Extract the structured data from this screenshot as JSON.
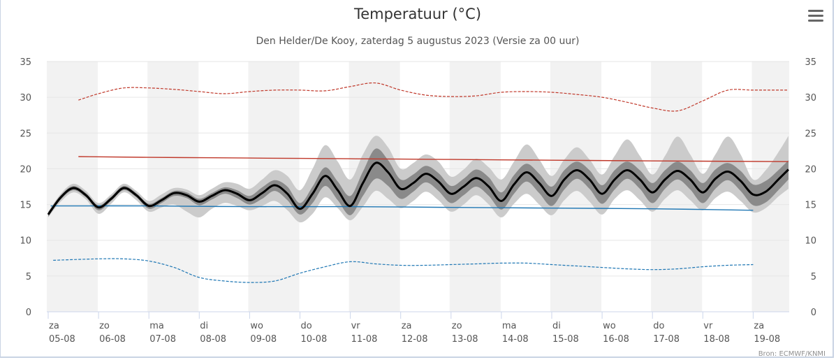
{
  "chart_data": {
    "type": "line",
    "title": "Temperatuur (°C)",
    "subtitle": "Den Helder/De Kooy, zaterdag 5 augustus 2023 (Versie za 00 uur)",
    "credit": "Bron: ECMWF/KNMI",
    "ylim": [
      0,
      35
    ],
    "yticks": [
      "0",
      "5",
      "10",
      "15",
      "20",
      "25",
      "30",
      "35"
    ],
    "xlim_days": [
      -0.03,
      14.7
    ],
    "xticks": [
      {
        "day": "za",
        "date": "05-08"
      },
      {
        "day": "zo",
        "date": "06-08"
      },
      {
        "day": "ma",
        "date": "07-08"
      },
      {
        "day": "di",
        "date": "08-08"
      },
      {
        "day": "wo",
        "date": "09-08"
      },
      {
        "day": "do",
        "date": "10-08"
      },
      {
        "day": "vr",
        "date": "11-08"
      },
      {
        "day": "za",
        "date": "12-08"
      },
      {
        "day": "zo",
        "date": "13-08"
      },
      {
        "day": "ma",
        "date": "14-08"
      },
      {
        "day": "di",
        "date": "15-08"
      },
      {
        "day": "wo",
        "date": "16-08"
      },
      {
        "day": "do",
        "date": "17-08"
      },
      {
        "day": "vr",
        "date": "18-08"
      },
      {
        "day": "za",
        "date": "19-08"
      }
    ],
    "grid": true,
    "colors": {
      "band_outer": "#cbcbcb",
      "band_inner": "#8a8a8a",
      "median": "#000000",
      "max_climate": "#c0392b",
      "min_climate": "#1f77b4",
      "record_max": "#c0392b",
      "record_min": "#1f77b4",
      "alt_shade": "#f2f2f2",
      "gridline": "#e6e6e6"
    },
    "series": [
      {
        "name": "mediaan",
        "x": [
          0,
          0.25,
          0.5,
          0.75,
          1.0,
          1.25,
          1.5,
          1.75,
          2.0,
          2.25,
          2.5,
          2.75,
          3.0,
          3.25,
          3.5,
          3.75,
          4.0,
          4.25,
          4.5,
          4.75,
          5.0,
          5.25,
          5.5,
          5.75,
          6.0,
          6.25,
          6.5,
          6.75,
          7.0,
          7.25,
          7.5,
          7.75,
          8.0,
          8.25,
          8.5,
          8.75,
          9.0,
          9.25,
          9.5,
          9.75,
          10.0,
          10.25,
          10.5,
          10.75,
          11.0,
          11.25,
          11.5,
          11.75,
          12.0,
          12.25,
          12.5,
          12.75,
          13.0,
          13.25,
          13.5,
          13.75,
          14.0,
          14.25,
          14.5,
          14.7
        ],
        "values": [
          13.6,
          16.0,
          17.3,
          16.3,
          14.6,
          15.8,
          17.3,
          16.3,
          14.8,
          15.6,
          16.6,
          16.3,
          15.4,
          16.2,
          17.0,
          16.5,
          15.6,
          16.6,
          17.7,
          16.5,
          14.4,
          16.5,
          19.0,
          17.0,
          14.8,
          18.0,
          20.8,
          19.5,
          17.2,
          18.0,
          19.3,
          18.2,
          16.5,
          17.5,
          18.7,
          17.5,
          15.5,
          17.8,
          19.5,
          18.0,
          16.2,
          18.5,
          19.8,
          18.5,
          16.5,
          18.5,
          19.8,
          18.5,
          16.7,
          18.5,
          19.7,
          18.5,
          16.7,
          18.6,
          19.6,
          18.3,
          16.4,
          16.8,
          18.5,
          19.9
        ]
      },
      {
        "name": "band_inner_upper",
        "values": [
          13.9,
          16.3,
          17.6,
          16.6,
          14.9,
          16.1,
          17.6,
          16.6,
          15.1,
          15.9,
          16.9,
          16.7,
          15.8,
          16.6,
          17.4,
          17.0,
          16.2,
          17.4,
          18.4,
          17.5,
          15.2,
          17.5,
          20.2,
          18.2,
          16.2,
          19.6,
          22.8,
          21.2,
          18.5,
          19.2,
          20.4,
          19.4,
          17.6,
          18.6,
          19.9,
          18.8,
          16.7,
          19.1,
          20.7,
          19.3,
          17.5,
          19.8,
          21.0,
          19.8,
          17.7,
          19.8,
          21.0,
          19.8,
          18.0,
          19.8,
          21.0,
          19.8,
          18.0,
          19.9,
          20.8,
          19.7,
          17.8,
          18.3,
          19.8,
          21.2
        ]
      },
      {
        "name": "band_inner_lower",
        "values": [
          13.3,
          15.7,
          17.0,
          16.0,
          14.2,
          15.5,
          17.0,
          16.0,
          14.4,
          15.2,
          16.2,
          15.9,
          14.9,
          15.7,
          16.5,
          15.9,
          15.0,
          15.8,
          16.9,
          15.6,
          13.6,
          15.2,
          17.6,
          15.6,
          13.5,
          16.2,
          18.6,
          17.6,
          15.8,
          16.8,
          18.1,
          16.9,
          15.2,
          16.3,
          17.5,
          16.2,
          14.3,
          16.5,
          18.2,
          16.6,
          14.8,
          17.1,
          18.6,
          17.2,
          15.1,
          17.1,
          18.6,
          17.2,
          15.2,
          17.2,
          18.5,
          17.1,
          15.2,
          17.2,
          18.4,
          16.9,
          14.9,
          15.3,
          17.0,
          18.5
        ]
      },
      {
        "name": "band_outer_upper",
        "values": [
          14.0,
          16.5,
          17.9,
          16.9,
          15.2,
          16.4,
          17.9,
          16.9,
          15.5,
          16.4,
          17.3,
          17.1,
          16.3,
          17.2,
          18.1,
          17.9,
          17.2,
          18.5,
          19.8,
          19.0,
          17.0,
          20.0,
          23.3,
          21.0,
          18.5,
          22.0,
          24.6,
          23.0,
          20.0,
          20.8,
          22.0,
          21.0,
          18.9,
          19.9,
          21.4,
          20.2,
          18.5,
          21.0,
          23.4,
          21.3,
          19.0,
          21.3,
          23.0,
          21.3,
          19.2,
          21.8,
          24.1,
          21.8,
          19.2,
          21.8,
          24.5,
          22.0,
          19.3,
          22.0,
          24.5,
          22.0,
          18.5,
          19.8,
          22.3,
          24.6
        ]
      },
      {
        "name": "band_outer_lower",
        "values": [
          13.2,
          15.4,
          16.7,
          15.7,
          13.7,
          15.1,
          16.7,
          15.6,
          14.0,
          14.6,
          15.0,
          14.0,
          13.2,
          14.4,
          15.2,
          14.8,
          14.2,
          14.8,
          15.5,
          14.2,
          12.5,
          13.7,
          16.0,
          14.5,
          12.8,
          14.7,
          16.9,
          15.8,
          14.5,
          15.5,
          16.8,
          15.6,
          14.0,
          15.0,
          16.3,
          15.0,
          13.2,
          15.1,
          16.5,
          15.0,
          13.5,
          15.6,
          16.9,
          15.4,
          13.6,
          15.8,
          17.0,
          15.6,
          14.0,
          15.8,
          17.0,
          15.6,
          14.2,
          15.9,
          16.8,
          15.5,
          13.9,
          14.5,
          16.1,
          17.2
        ]
      },
      {
        "name": "normaal_max",
        "x": [
          0.6,
          2,
          4,
          6,
          8,
          10,
          12,
          14.7
        ],
        "values": [
          21.7,
          21.6,
          21.5,
          21.4,
          21.3,
          21.2,
          21.1,
          21.0
        ]
      },
      {
        "name": "normaal_min",
        "x": [
          0.05,
          2,
          4,
          6,
          8,
          10,
          12,
          14.0
        ],
        "values": [
          14.8,
          14.8,
          14.7,
          14.7,
          14.6,
          14.5,
          14.4,
          14.2
        ]
      },
      {
        "name": "record_max",
        "x": [
          0.6,
          1.0,
          1.5,
          2.0,
          2.5,
          3.0,
          3.5,
          4.0,
          4.5,
          5.0,
          5.5,
          6.0,
          6.5,
          7.0,
          7.5,
          8.0,
          8.5,
          9.0,
          9.5,
          10.0,
          10.5,
          11.0,
          11.5,
          12.0,
          12.5,
          13.0,
          13.5,
          14.0,
          14.7
        ],
        "values": [
          29.6,
          30.5,
          31.3,
          31.3,
          31.1,
          30.8,
          30.5,
          30.8,
          31.0,
          31.0,
          30.9,
          31.5,
          32.0,
          31.0,
          30.3,
          30.1,
          30.2,
          30.7,
          30.8,
          30.7,
          30.4,
          30.0,
          29.3,
          28.5,
          28.1,
          29.5,
          31.0,
          31.0,
          31.0
        ]
      },
      {
        "name": "record_min",
        "x": [
          0.1,
          1.0,
          1.5,
          2.0,
          2.5,
          3.0,
          3.5,
          4.0,
          4.5,
          5.0,
          5.5,
          6.0,
          6.5,
          7.0,
          7.5,
          8.0,
          8.5,
          9.0,
          9.5,
          10.0,
          10.5,
          11.0,
          11.5,
          12.0,
          12.5,
          13.0,
          13.5,
          14.0
        ],
        "values": [
          7.2,
          7.4,
          7.4,
          7.1,
          6.2,
          4.8,
          4.3,
          4.1,
          4.3,
          5.4,
          6.3,
          7.0,
          6.7,
          6.5,
          6.5,
          6.6,
          6.7,
          6.8,
          6.8,
          6.6,
          6.4,
          6.2,
          6.0,
          5.9,
          6.0,
          6.3,
          6.5,
          6.6
        ]
      }
    ]
  }
}
